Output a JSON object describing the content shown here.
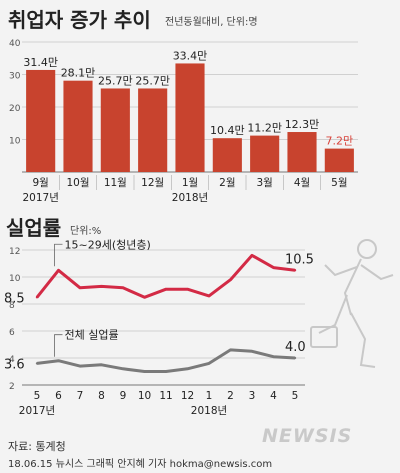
{
  "chart_data": [
    {
      "type": "bar",
      "title": "취업자 증가 추이",
      "subtitle": "전년동월대비, 단위:명",
      "categories": [
        "9월",
        "10월",
        "11월",
        "12월",
        "1월",
        "2월",
        "3월",
        "4월",
        "5월"
      ],
      "year_labels": [
        {
          "label": "2017년",
          "index": 0
        },
        {
          "label": "2018년",
          "index": 4
        }
      ],
      "values": [
        314000,
        281000,
        257000,
        257000,
        334000,
        104000,
        112000,
        123000,
        72000
      ],
      "data_labels": [
        "31.4만",
        "28.1만",
        "25.7만",
        "25.7만",
        "33.4만",
        "10.4만",
        "11.2만",
        "12.3만",
        "7.2만"
      ],
      "highlight_label_color": "#d9453d",
      "bar_color": "#c8432e",
      "y_ticks": [
        "10",
        "20",
        "30",
        "40"
      ],
      "ylim": [
        0,
        40
      ],
      "grid": true
    },
    {
      "type": "line",
      "title": "실업률",
      "subtitle": "단위:%",
      "x": [
        "5",
        "6",
        "7",
        "8",
        "9",
        "10",
        "11",
        "12",
        "1",
        "2",
        "3",
        "4",
        "5"
      ],
      "year_labels": [
        {
          "label": "2017년",
          "index": 0
        },
        {
          "label": "2018년",
          "index": 8
        }
      ],
      "y_ticks": [
        "2",
        "4",
        "6",
        "8",
        "10",
        "12"
      ],
      "ylim": [
        2,
        12
      ],
      "series": [
        {
          "name": "15~29세(청년층)",
          "color": "#d32a45",
          "values": [
            8.5,
            10.5,
            9.2,
            9.3,
            9.2,
            8.5,
            9.1,
            9.1,
            8.6,
            9.8,
            11.6,
            10.7,
            10.5
          ],
          "start_label": "8.5",
          "end_label": "10.5"
        },
        {
          "name": "전체 실업률",
          "color": "#7a7a7a",
          "values": [
            3.6,
            3.8,
            3.4,
            3.5,
            3.2,
            3.0,
            3.0,
            3.2,
            3.6,
            4.6,
            4.5,
            4.1,
            4.0
          ],
          "start_label": "3.6",
          "end_label": "4.0"
        }
      ],
      "grid": true
    }
  ],
  "footer": {
    "source": "자료: 통계청",
    "credit": "18.06.15 뉴시스 그래픽 안지혜 기자 hokma@newsis.com"
  },
  "watermark": "NEWSIS"
}
